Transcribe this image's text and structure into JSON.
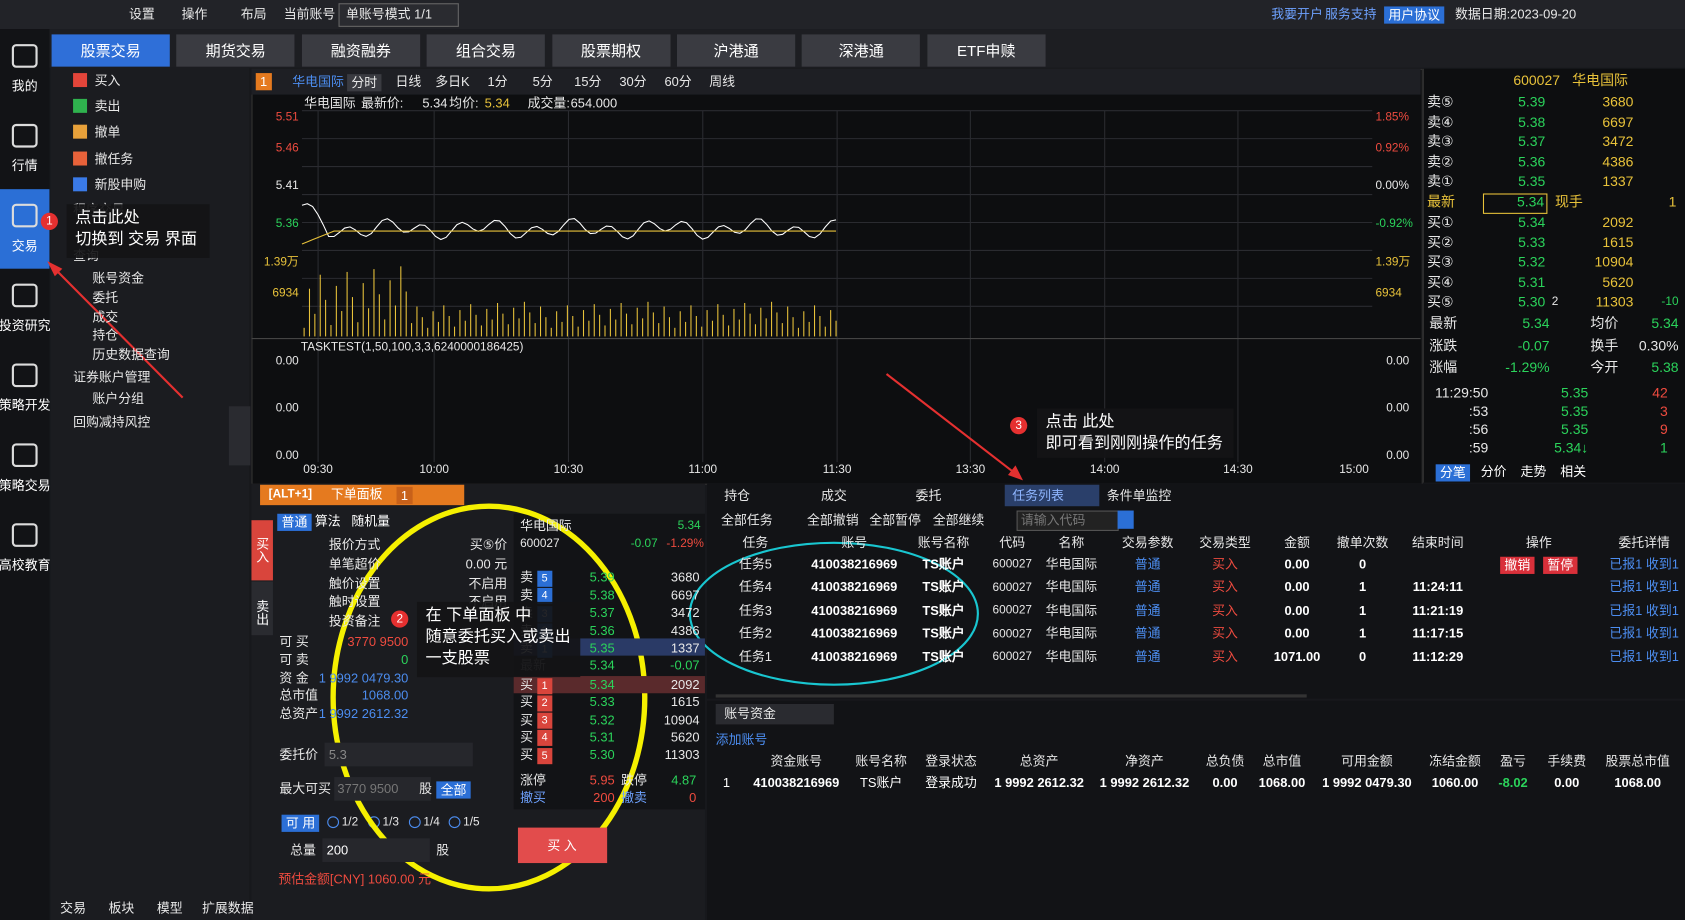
{
  "topbar": {
    "items": [
      "设置",
      "操作",
      "布局",
      "当前账号"
    ],
    "account_mode": "单账号模式 1/1",
    "links": [
      "我要开户",
      "服务支持",
      "用户协议"
    ],
    "date": "数据日期:2023-09-20"
  },
  "sidebar": [
    "我的",
    "行情",
    "交易",
    "投资研究",
    "策略开发",
    "策略交易",
    "高校教育"
  ],
  "tabs": [
    "股票交易",
    "期货交易",
    "融资融券",
    "组合交易",
    "股票期权",
    "沪港通",
    "深港通",
    "ETF申赎"
  ],
  "menu": {
    "actions": [
      "买入",
      "卖出",
      "撤单",
      "撤任务",
      "新股申购"
    ],
    "program": "程序交易",
    "query": "查询",
    "query_items": [
      "账号资金",
      "委托",
      "成交",
      "持仓",
      "历史数据查询"
    ],
    "account_mgmt": "证券账户管理",
    "account_items": [
      "账户分组"
    ],
    "risk": "回购减持风控",
    "bottom_tabs": [
      "交易",
      "板块",
      "模型",
      "扩展数据"
    ]
  },
  "annotations": [
    {
      "badge": "1",
      "lines": [
        "点击此处",
        "切换到 交易 界面"
      ]
    },
    {
      "badge": "2",
      "lines": [
        "在 下单面板 中",
        "随意委托买入或卖出",
        "一支股票"
      ]
    },
    {
      "badge": "3",
      "lines": [
        "点击 此处",
        "即可看到刚刚操作的任务"
      ]
    }
  ],
  "chart": {
    "badge": "1",
    "stock": "华电国际",
    "periods": [
      "分时",
      "日线",
      "多日K",
      "1分",
      "5分",
      "15分",
      "30分",
      "60分",
      "周线"
    ],
    "header": [
      "华电国际",
      "最新价:",
      "5.34",
      "均价:",
      "5.34",
      "成交量:",
      "654.000"
    ],
    "left_labels": [
      "5.51",
      "5.46",
      "5.41",
      "5.36",
      "1.39万",
      "6934"
    ],
    "right_labels": [
      "1.85%",
      "0.92%",
      "0.00%",
      "-0.92%",
      "1.39万",
      "6934"
    ],
    "indicator": "TASKTEST(1,50,100,3,3,6240000186425)",
    "lower_labels": [
      "0.00",
      "0.00",
      "0.00"
    ],
    "times": [
      "09:30",
      "10:00",
      "10:30",
      "11:00",
      "11:30",
      "13:30",
      "14:00",
      "14:30",
      "15:00"
    ]
  },
  "quote": {
    "code": "600027",
    "name": "华电国际",
    "sells": [
      [
        "卖⑤",
        "5.39",
        "3680"
      ],
      [
        "卖④",
        "5.38",
        "6697"
      ],
      [
        "卖③",
        "5.37",
        "3472"
      ],
      [
        "卖②",
        "5.36",
        "4386"
      ],
      [
        "卖①",
        "5.35",
        "1337"
      ]
    ],
    "latest": [
      "最新",
      "5.34",
      "现手",
      "1"
    ],
    "buys": [
      [
        "买①",
        "5.34",
        "2092"
      ],
      [
        "买②",
        "5.33",
        "1615"
      ],
      [
        "买③",
        "5.32",
        "10904"
      ],
      [
        "买④",
        "5.31",
        "5620"
      ],
      [
        "买⑤",
        "5.30",
        "11303"
      ]
    ],
    "buy5_extra": [
      "2",
      "-10"
    ],
    "stats": [
      [
        "最新",
        "5.34",
        "均价",
        "5.34"
      ],
      [
        "涨跌",
        "-0.07",
        "换手",
        "0.30%"
      ],
      [
        "涨幅",
        "-1.29%",
        "今开",
        "5.38"
      ]
    ],
    "ticks": [
      [
        "11:29:50",
        "5.35",
        "42"
      ],
      [
        ":53",
        "5.35",
        "3"
      ],
      [
        ":56",
        "5.35",
        "9"
      ],
      [
        ":59",
        "5.34↓",
        "1"
      ]
    ],
    "tabs": [
      "分笔",
      "分价",
      "走势",
      "相关"
    ]
  },
  "order": {
    "hotkey": "[ALT+1]",
    "title": "下单面板",
    "num": "1",
    "side_tabs": [
      "买入",
      "卖出"
    ],
    "modes": [
      "普通",
      "算法",
      "随机量"
    ],
    "fields": [
      [
        "报价方式",
        "买⑤价"
      ],
      [
        "单笔超价",
        "0.00 元"
      ],
      [
        "触价设置",
        "不启用"
      ],
      [
        "触时设置",
        "不启用"
      ],
      [
        "投资备注",
        ""
      ]
    ],
    "info": [
      [
        "可 买",
        "3770 9500"
      ],
      [
        "可 卖",
        "0"
      ],
      [
        "资 金",
        "1 9992 0479.30"
      ],
      [
        "总市值",
        "1068.00"
      ],
      [
        "总资产",
        "1 9992 2612.32"
      ]
    ],
    "price_label": "委托价",
    "price": "5.3",
    "max_label": "最大可买",
    "max": "3770 9500",
    "unit": "股",
    "all": "全部",
    "avail": "可 用",
    "fractions": [
      "1/2",
      "1/3",
      "1/4",
      "1/5"
    ],
    "qty_label": "总量",
    "qty": "200",
    "estimate": "预估金额[CNY] 1060.00 元",
    "buy": "买 入"
  },
  "book": {
    "name": "华电国际",
    "price": "5.34",
    "code": "600027",
    "change": "-0.07",
    "pct": "-1.29%",
    "sells": [
      [
        "卖",
        "5",
        "5.39",
        "3680"
      ],
      [
        "卖",
        "4",
        "5.38",
        "6697"
      ],
      [
        "卖",
        "3",
        "5.37",
        "3472"
      ],
      [
        "卖",
        "2",
        "5.36",
        "4386"
      ],
      [
        "卖",
        "1",
        "5.35",
        "1337"
      ]
    ],
    "latest": [
      "最新",
      "5.34",
      "-0.07"
    ],
    "buys": [
      [
        "买",
        "1",
        "5.34",
        "2092"
      ],
      [
        "买",
        "2",
        "5.33",
        "1615"
      ],
      [
        "买",
        "3",
        "5.32",
        "10904"
      ],
      [
        "买",
        "4",
        "5.31",
        "5620"
      ],
      [
        "买",
        "5",
        "5.30",
        "11303"
      ]
    ],
    "limits": [
      [
        "涨停",
        "5.95",
        "跌停",
        "4.87"
      ],
      [
        "撤买",
        "200",
        "撤卖",
        "0"
      ]
    ]
  },
  "task": {
    "tabs": [
      "持仓",
      "成交",
      "委托",
      "任务列表",
      "条件单监控"
    ],
    "tools": [
      "全部任务",
      "全部撤销",
      "全部暂停",
      "全部继续"
    ],
    "search": "请输入代码",
    "headers": [
      "任务",
      "账号",
      "账号名称",
      "代码",
      "名称",
      "交易参数",
      "交易类型",
      "金额",
      "撤单次数",
      "结束时间",
      "操作",
      "委托详情"
    ],
    "rows": [
      {
        "cells": [
          "任务5",
          "410038216969",
          "TS账户",
          "600027",
          "华电国际",
          "普通",
          "买入",
          "0.00",
          "0",
          "",
          "已报1 收到1"
        ],
        "ops": [
          "撤销",
          "暂停"
        ]
      },
      {
        "cells": [
          "任务4",
          "410038216969",
          "TS账户",
          "600027",
          "华电国际",
          "普通",
          "买入",
          "0.00",
          "1",
          "11:24:11",
          "已报1 收到1"
        ]
      },
      {
        "cells": [
          "任务3",
          "410038216969",
          "TS账户",
          "600027",
          "华电国际",
          "普通",
          "买入",
          "0.00",
          "1",
          "11:21:19",
          "已报1 收到1"
        ]
      },
      {
        "cells": [
          "任务2",
          "410038216969",
          "TS账户",
          "600027",
          "华电国际",
          "普通",
          "买入",
          "0.00",
          "1",
          "11:17:15",
          "已报1 收到1"
        ]
      },
      {
        "cells": [
          "任务1",
          "410038216969",
          "TS账户",
          "600027",
          "华电国际",
          "普通",
          "买入",
          "1071.00",
          "0",
          "11:12:29",
          "已报1 收到1"
        ]
      }
    ]
  },
  "account": {
    "tab": "账号资金",
    "add": "添加账号",
    "headers": [
      "资金账号",
      "账号名称",
      "登录状态",
      "总资产",
      "净资产",
      "总负债",
      "总市值",
      "可用金额",
      "冻结金额",
      "盈亏",
      "手续费",
      "股票总市值"
    ],
    "row": [
      "1",
      "410038216969",
      "TS账户",
      "登录成功",
      "1 9992 2612.32",
      "1 9992 2612.32",
      "0.00",
      "1068.00",
      "1 9992 0479.30",
      "1060.00",
      "-8.02",
      "0.00",
      "1068.00"
    ]
  }
}
